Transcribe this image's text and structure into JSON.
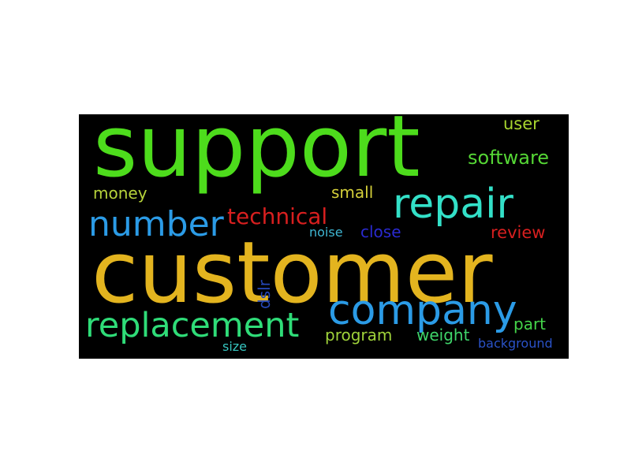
{
  "words": {
    "support": {
      "text": "support",
      "color": "#4ddc1c"
    },
    "customer": {
      "text": "customer",
      "color": "#e3b41f"
    },
    "repair": {
      "text": "repair",
      "color": "#33e0c8"
    },
    "company": {
      "text": "company",
      "color": "#2b9be6"
    },
    "number": {
      "text": "number",
      "color": "#2b9be6"
    },
    "replacement": {
      "text": "replacement",
      "color": "#2fdc78"
    },
    "technical": {
      "text": "technical",
      "color": "#d81f1f"
    },
    "software": {
      "text": "software",
      "color": "#55d635"
    },
    "user": {
      "text": "user",
      "color": "#a8d62f"
    },
    "money": {
      "text": "money",
      "color": "#b7d33b"
    },
    "small": {
      "text": "small",
      "color": "#d4cf3a"
    },
    "review": {
      "text": "review",
      "color": "#d81f1f"
    },
    "noise": {
      "text": "noise",
      "color": "#3fb7d4"
    },
    "close": {
      "text": "close",
      "color": "#2a2ad0"
    },
    "dslr": {
      "text": "dslr",
      "color": "#2547b8"
    },
    "part": {
      "text": "part",
      "color": "#44d44a"
    },
    "program": {
      "text": "program",
      "color": "#9fd23a"
    },
    "weight": {
      "text": "weight",
      "color": "#3fd56a"
    },
    "background": {
      "text": "background",
      "color": "#2a52c8"
    },
    "size": {
      "text": "size",
      "color": "#36c6c0"
    }
  }
}
